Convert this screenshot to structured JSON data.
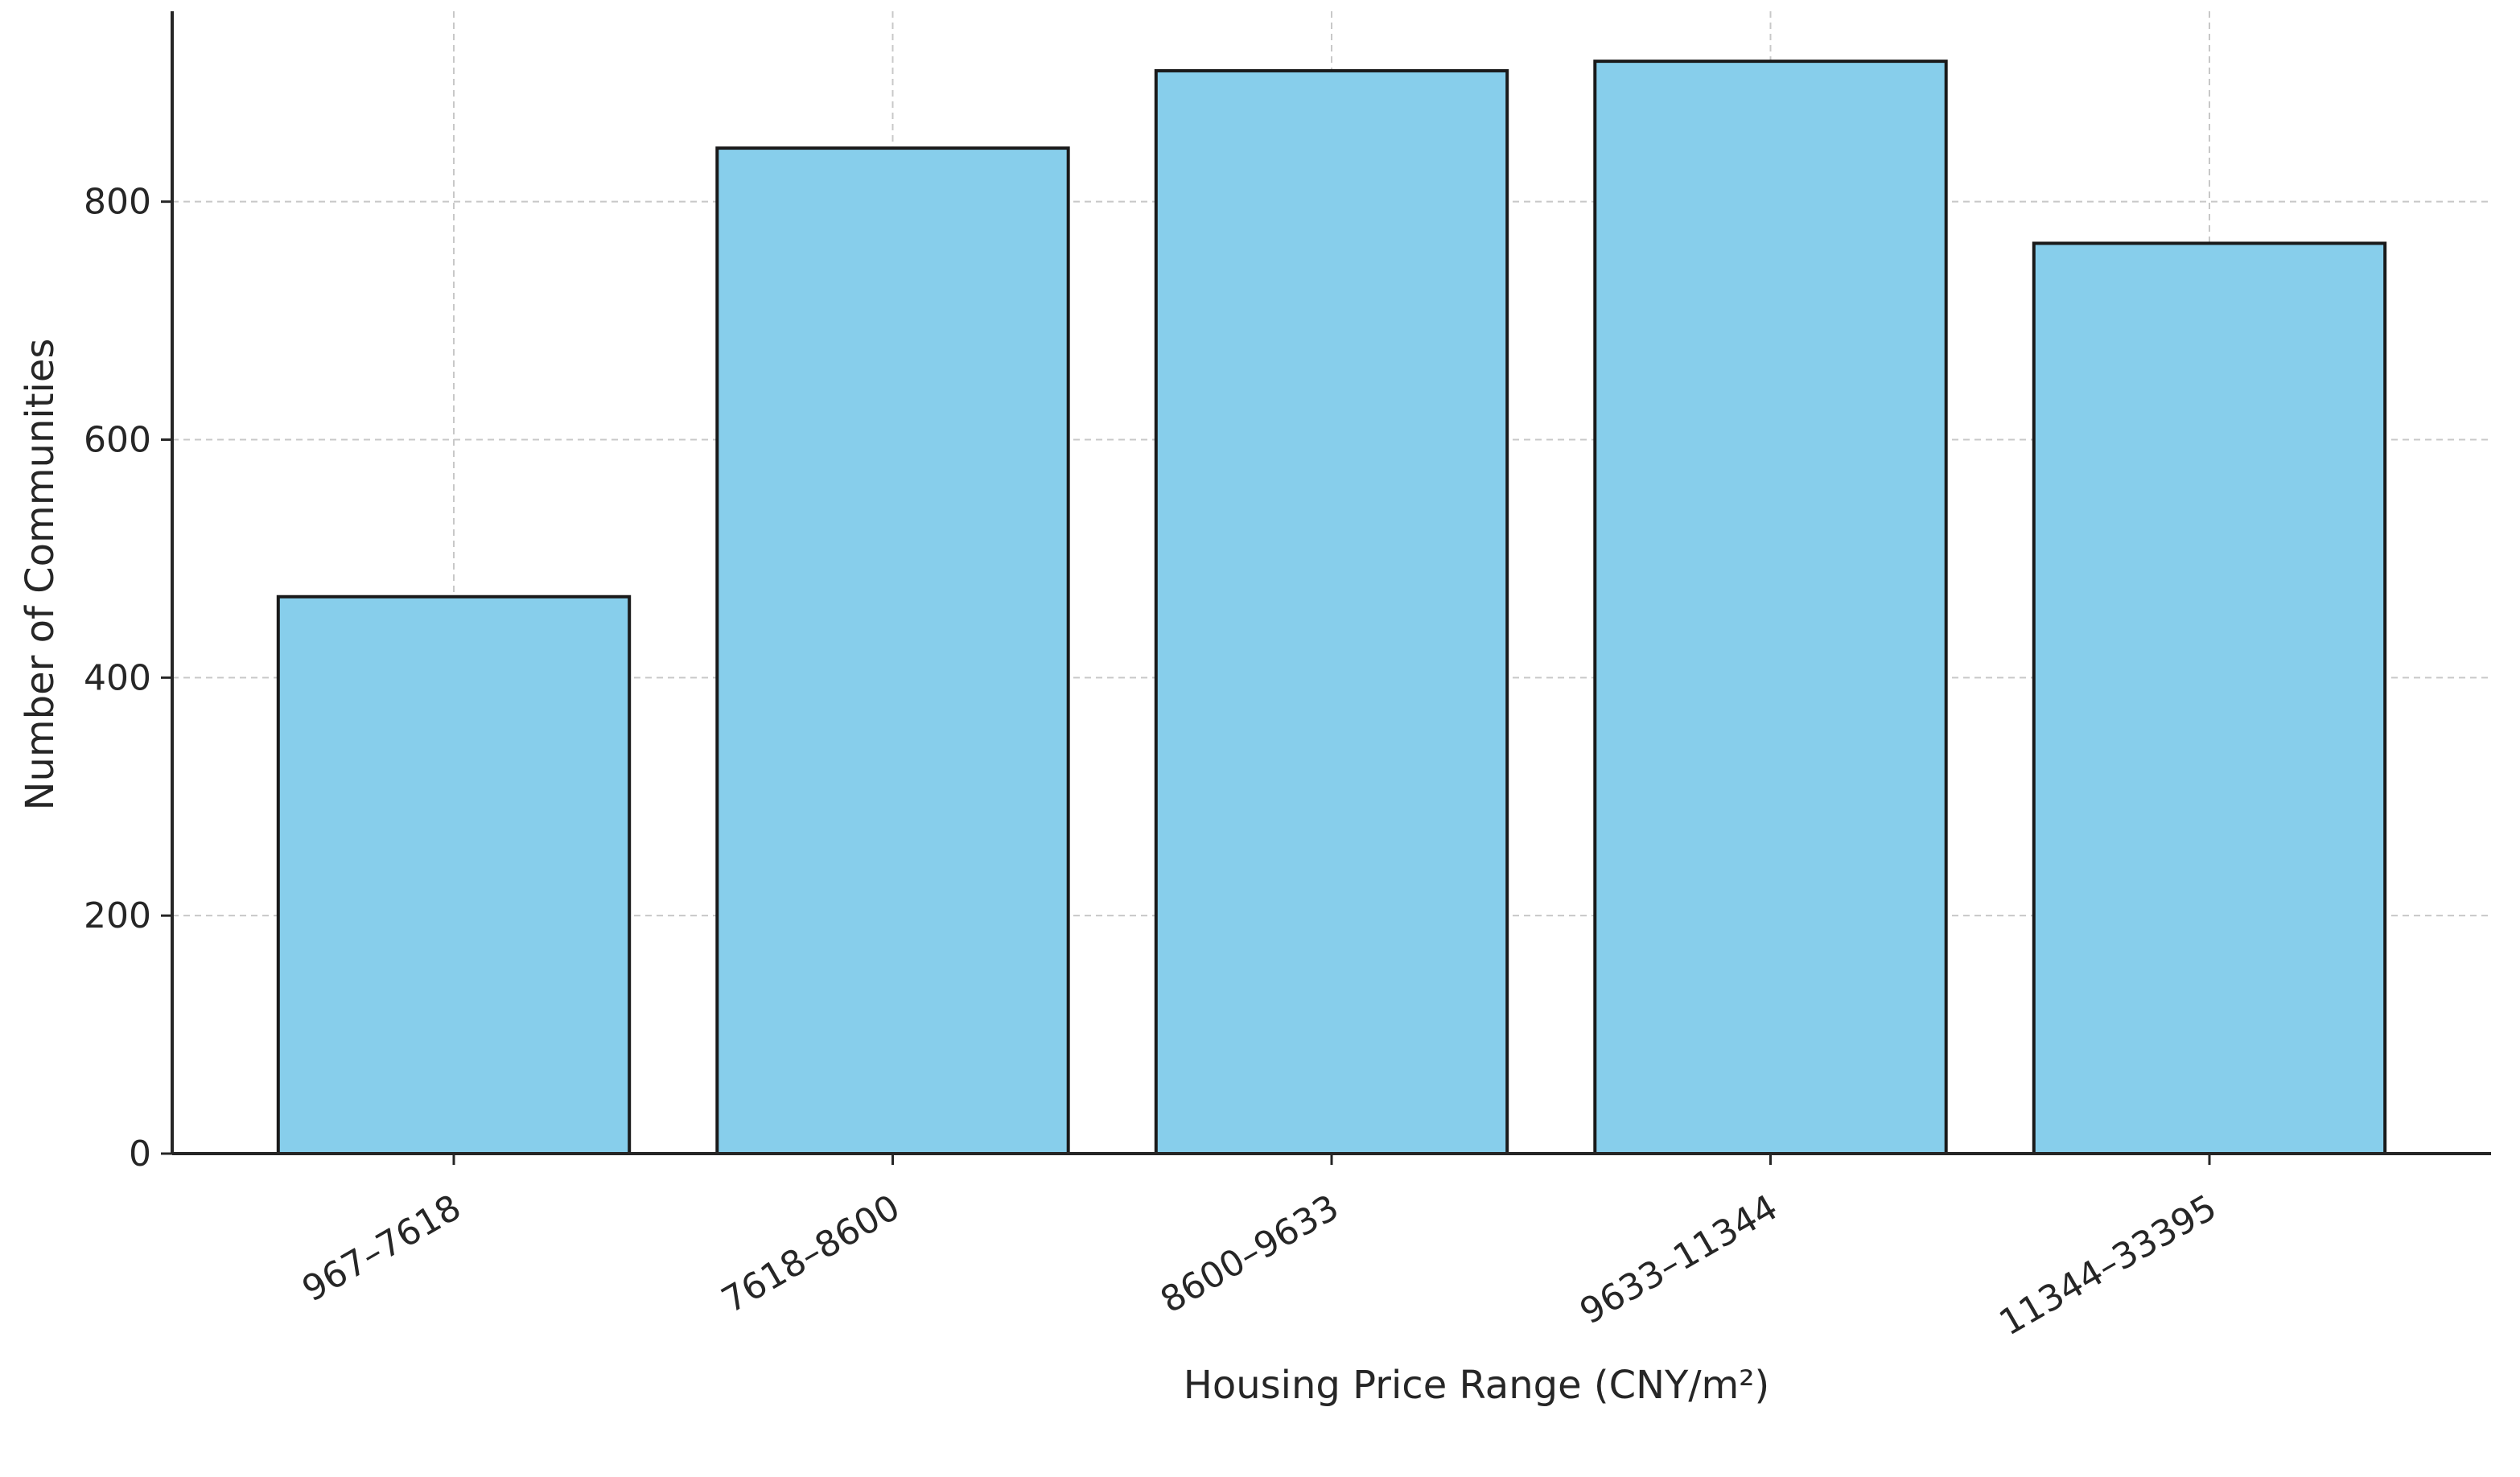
{
  "chart_data": {
    "type": "bar",
    "title": "",
    "xlabel": "Housing Price Range (CNY/m²)",
    "ylabel": "Number of Communities",
    "categories": [
      "967–7618",
      "7618–8600",
      "8600–9633",
      "9633–11344",
      "11344–33395"
    ],
    "values": [
      468,
      845,
      910,
      918,
      765
    ],
    "ylim": [
      0,
      960
    ],
    "yticks": [
      0,
      200,
      400,
      600,
      800
    ],
    "grid": true,
    "bar_color": "#87ceeb",
    "edge_color": "#1a1a1a"
  }
}
